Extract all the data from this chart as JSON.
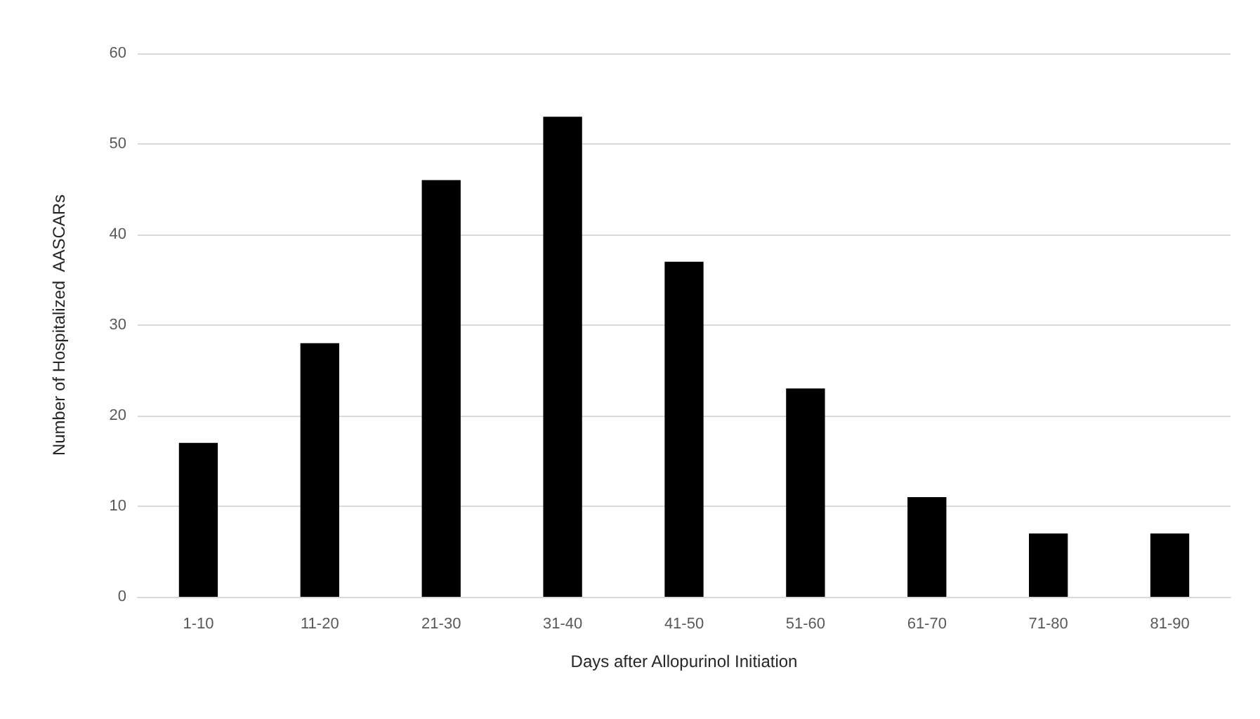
{
  "chart_data": {
    "type": "bar",
    "xlabel": "Days after Allopurinol Initiation",
    "ylabel": "Number of Hospitalized  AASCARs",
    "categories": [
      "1-10",
      "11-20",
      "21-30",
      "31-40",
      "41-50",
      "51-60",
      "61-70",
      "71-80",
      "81-90"
    ],
    "values": [
      17,
      28,
      46,
      53,
      37,
      23,
      11,
      7,
      7
    ],
    "color": "#000000",
    "ylim": [
      0,
      60
    ],
    "yticks": [
      0,
      10,
      20,
      30,
      40,
      50,
      60
    ],
    "grid": "y"
  }
}
